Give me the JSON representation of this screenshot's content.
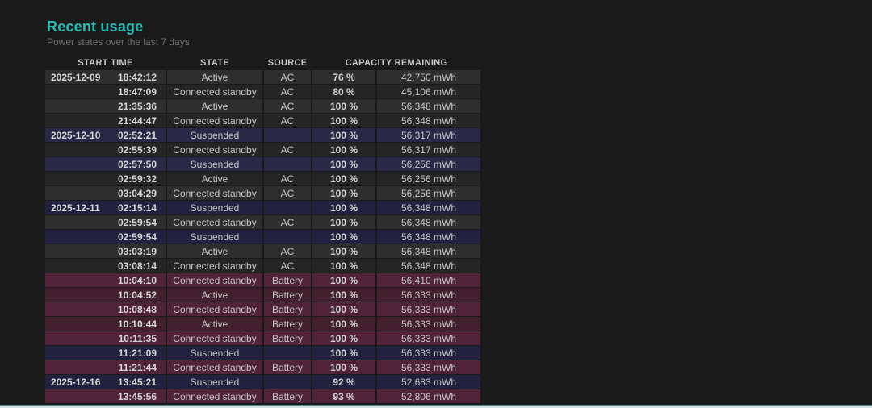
{
  "page": {
    "title": "Recent usage",
    "subtitle": "Power states over the last 7 days"
  },
  "table": {
    "headers": [
      "START TIME",
      "STATE",
      "SOURCE",
      "CAPACITY REMAINING"
    ],
    "rows": [
      {
        "date": "2025-12-09",
        "time": "18:42:12",
        "state": "Active",
        "source": "AC",
        "percent": "76 %",
        "capacity": "42,750 mWh"
      },
      {
        "date": "",
        "time": "18:47:09",
        "state": "Connected standby",
        "source": "AC",
        "percent": "80 %",
        "capacity": "45,106 mWh"
      },
      {
        "date": "",
        "time": "21:35:36",
        "state": "Active",
        "source": "AC",
        "percent": "100 %",
        "capacity": "56,348 mWh"
      },
      {
        "date": "",
        "time": "21:44:47",
        "state": "Connected standby",
        "source": "AC",
        "percent": "100 %",
        "capacity": "56,348 mWh"
      },
      {
        "date": "2025-12-10",
        "time": "02:52:21",
        "state": "Suspended",
        "source": "",
        "percent": "100 %",
        "capacity": "56,317 mWh"
      },
      {
        "date": "",
        "time": "02:55:39",
        "state": "Connected standby",
        "source": "AC",
        "percent": "100 %",
        "capacity": "56,317 mWh"
      },
      {
        "date": "",
        "time": "02:57:50",
        "state": "Suspended",
        "source": "",
        "percent": "100 %",
        "capacity": "56,256 mWh"
      },
      {
        "date": "",
        "time": "02:59:32",
        "state": "Active",
        "source": "AC",
        "percent": "100 %",
        "capacity": "56,256 mWh"
      },
      {
        "date": "",
        "time": "03:04:29",
        "state": "Connected standby",
        "source": "AC",
        "percent": "100 %",
        "capacity": "56,256 mWh"
      },
      {
        "date": "2025-12-11",
        "time": "02:15:14",
        "state": "Suspended",
        "source": "",
        "percent": "100 %",
        "capacity": "56,348 mWh"
      },
      {
        "date": "",
        "time": "02:59:54",
        "state": "Connected standby",
        "source": "AC",
        "percent": "100 %",
        "capacity": "56,348 mWh"
      },
      {
        "date": "",
        "time": "02:59:54",
        "state": "Suspended",
        "source": "",
        "percent": "100 %",
        "capacity": "56,348 mWh"
      },
      {
        "date": "",
        "time": "03:03:19",
        "state": "Active",
        "source": "AC",
        "percent": "100 %",
        "capacity": "56,348 mWh"
      },
      {
        "date": "",
        "time": "03:08:14",
        "state": "Connected standby",
        "source": "AC",
        "percent": "100 %",
        "capacity": "56,348 mWh"
      },
      {
        "date": "",
        "time": "10:04:10",
        "state": "Connected standby",
        "source": "Battery",
        "percent": "100 %",
        "capacity": "56,410 mWh"
      },
      {
        "date": "",
        "time": "10:04:52",
        "state": "Active",
        "source": "Battery",
        "percent": "100 %",
        "capacity": "56,333 mWh"
      },
      {
        "date": "",
        "time": "10:08:48",
        "state": "Connected standby",
        "source": "Battery",
        "percent": "100 %",
        "capacity": "56,333 mWh"
      },
      {
        "date": "",
        "time": "10:10:44",
        "state": "Active",
        "source": "Battery",
        "percent": "100 %",
        "capacity": "56,333 mWh"
      },
      {
        "date": "",
        "time": "10:11:35",
        "state": "Connected standby",
        "source": "Battery",
        "percent": "100 %",
        "capacity": "56,333 mWh"
      },
      {
        "date": "",
        "time": "11:21:09",
        "state": "Suspended",
        "source": "",
        "percent": "100 %",
        "capacity": "56,333 mWh"
      },
      {
        "date": "",
        "time": "11:21:44",
        "state": "Connected standby",
        "source": "Battery",
        "percent": "100 %",
        "capacity": "56,333 mWh"
      },
      {
        "date": "2025-12-16",
        "time": "13:45:21",
        "state": "Suspended",
        "source": "",
        "percent": "92 %",
        "capacity": "52,683 mWh"
      },
      {
        "date": "",
        "time": "13:45:56",
        "state": "Connected standby",
        "source": "Battery",
        "percent": "93 %",
        "capacity": "52,806 mWh"
      }
    ]
  },
  "colors": {
    "accent_teal": "#28bcb2",
    "row_normal_odd": "#2e2e2e",
    "row_normal_even": "#252525",
    "row_suspended_odd": "#2a2847",
    "row_suspended_even": "#232140",
    "row_battery_odd": "#512339",
    "row_battery_even": "#43202e",
    "bottom_line_fill": "#cfe3e2",
    "bottom_line_edge": "#4a8c88"
  }
}
